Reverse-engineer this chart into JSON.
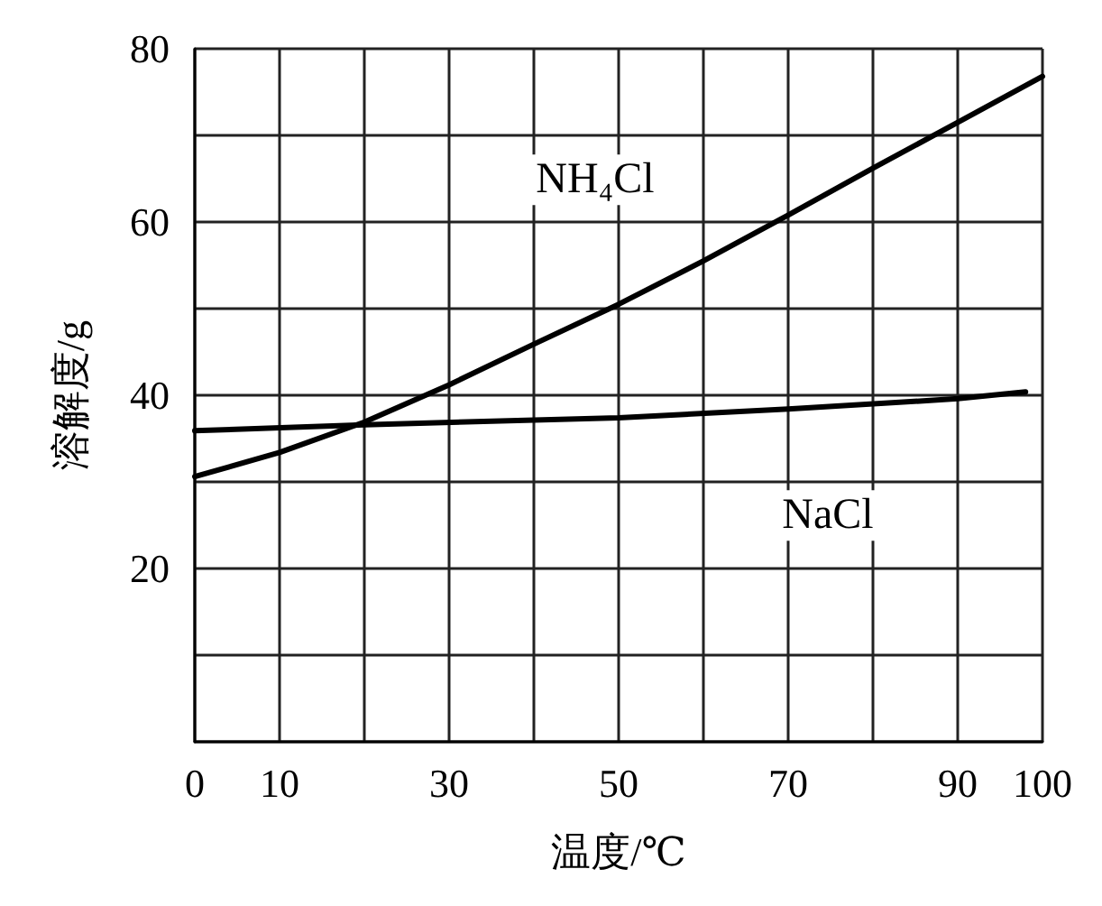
{
  "chart_data": {
    "type": "line",
    "xlabel": "温度/℃",
    "ylabel": "溶解度/g",
    "xlim": [
      0,
      100
    ],
    "ylim": [
      0,
      80
    ],
    "xticks": [
      0,
      10,
      {
        "value": 20,
        "label": null
      },
      30,
      {
        "value": 40,
        "label": null
      },
      50,
      {
        "value": 60,
        "label": null
      },
      70,
      {
        "value": 80,
        "label": null
      },
      90,
      100
    ],
    "yticks": [
      {
        "value": 0,
        "label": null
      },
      {
        "value": 10,
        "label": null
      },
      20,
      {
        "value": 30,
        "label": null
      },
      40,
      {
        "value": 50,
        "label": null
      },
      60,
      {
        "value": 70,
        "label": null
      },
      80
    ],
    "grid": true,
    "legend": false,
    "marker": "none",
    "line_style": "solid",
    "series": [
      {
        "name": "NH₄Cl",
        "color": "#000000",
        "x": [
          0,
          10,
          20,
          30,
          40,
          50,
          60,
          70,
          80,
          90,
          100
        ],
        "values": [
          30.6,
          33.4,
          36.9,
          41.2,
          45.9,
          50.5,
          55.5,
          60.8,
          66.2,
          71.5,
          76.8
        ]
      },
      {
        "name": "NaCl",
        "color": "#000000",
        "x": [
          0,
          20,
          50,
          70,
          90,
          98
        ],
        "values": [
          35.9,
          36.6,
          37.4,
          38.4,
          39.6,
          40.4
        ]
      }
    ]
  }
}
